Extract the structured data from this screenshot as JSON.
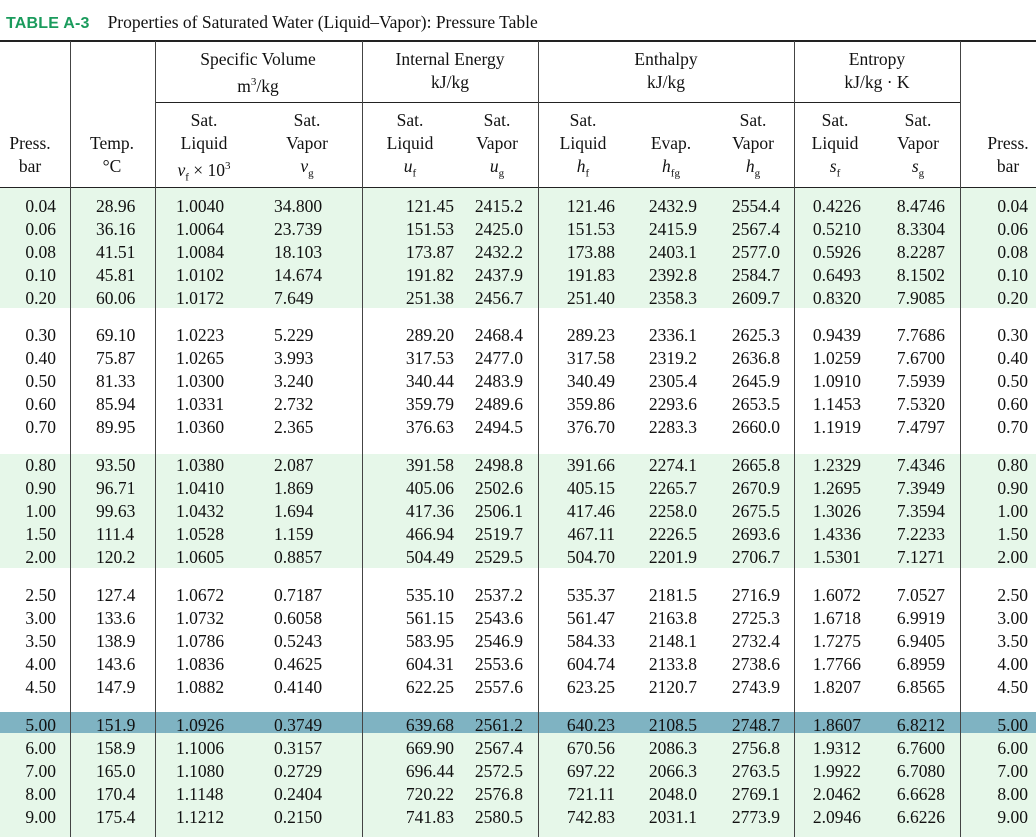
{
  "title": {
    "label": "TABLE A-3",
    "text": "Properties of Saturated Water (Liquid–Vapor): Pressure Table"
  },
  "groups": [
    {
      "name": "Specific Volume",
      "unit": "m³/kg"
    },
    {
      "name": "Internal Energy",
      "unit": "kJ/kg"
    },
    {
      "name": "Enthalpy",
      "unit": "kJ/kg"
    },
    {
      "name": "Entropy",
      "unit": "kJ/kg · K"
    }
  ],
  "columns": [
    {
      "l1": "",
      "l2": "Press.",
      "l3": "bar"
    },
    {
      "l1": "",
      "l2": "Temp.",
      "l3": "°C"
    },
    {
      "l1": "Sat.",
      "l2": "Liquid",
      "sym": "v",
      "sub": "f",
      "suffix": " × 10³"
    },
    {
      "l1": "Sat.",
      "l2": "Vapor",
      "sym": "v",
      "sub": "g",
      "suffix": ""
    },
    {
      "l1": "Sat.",
      "l2": "Liquid",
      "sym": "u",
      "sub": "f",
      "suffix": ""
    },
    {
      "l1": "Sat.",
      "l2": "Vapor",
      "sym": "u",
      "sub": "g",
      "suffix": ""
    },
    {
      "l1": "Sat.",
      "l2": "Liquid",
      "sym": "h",
      "sub": "f",
      "suffix": ""
    },
    {
      "l1": "",
      "l2": "Evap.",
      "sym": "h",
      "sub": "fg",
      "suffix": ""
    },
    {
      "l1": "Sat.",
      "l2": "Vapor",
      "sym": "h",
      "sub": "g",
      "suffix": ""
    },
    {
      "l1": "Sat.",
      "l2": "Liquid",
      "sym": "s",
      "sub": "f",
      "suffix": ""
    },
    {
      "l1": "Sat.",
      "l2": "Vapor",
      "sym": "s",
      "sub": "g",
      "suffix": ""
    },
    {
      "l1": "",
      "l2": "Press.",
      "l3": "bar"
    }
  ],
  "rows": [
    [
      "0.04",
      "28.96",
      "1.0040",
      "34.800",
      "121.45",
      "2415.2",
      "121.46",
      "2432.9",
      "2554.4",
      "0.4226",
      "8.4746",
      "0.04"
    ],
    [
      "0.06",
      "36.16",
      "1.0064",
      "23.739",
      "151.53",
      "2425.0",
      "151.53",
      "2415.9",
      "2567.4",
      "0.5210",
      "8.3304",
      "0.06"
    ],
    [
      "0.08",
      "41.51",
      "1.0084",
      "18.103",
      "173.87",
      "2432.2",
      "173.88",
      "2403.1",
      "2577.0",
      "0.5926",
      "8.2287",
      "0.08"
    ],
    [
      "0.10",
      "45.81",
      "1.0102",
      "14.674",
      "191.82",
      "2437.9",
      "191.83",
      "2392.8",
      "2584.7",
      "0.6493",
      "8.1502",
      "0.10"
    ],
    [
      "0.20",
      "60.06",
      "1.0172",
      "7.649",
      "251.38",
      "2456.7",
      "251.40",
      "2358.3",
      "2609.7",
      "0.8320",
      "7.9085",
      "0.20"
    ],
    [
      "0.30",
      "69.10",
      "1.0223",
      "5.229",
      "289.20",
      "2468.4",
      "289.23",
      "2336.1",
      "2625.3",
      "0.9439",
      "7.7686",
      "0.30"
    ],
    [
      "0.40",
      "75.87",
      "1.0265",
      "3.993",
      "317.53",
      "2477.0",
      "317.58",
      "2319.2",
      "2636.8",
      "1.0259",
      "7.6700",
      "0.40"
    ],
    [
      "0.50",
      "81.33",
      "1.0300",
      "3.240",
      "340.44",
      "2483.9",
      "340.49",
      "2305.4",
      "2645.9",
      "1.0910",
      "7.5939",
      "0.50"
    ],
    [
      "0.60",
      "85.94",
      "1.0331",
      "2.732",
      "359.79",
      "2489.6",
      "359.86",
      "2293.6",
      "2653.5",
      "1.1453",
      "7.5320",
      "0.60"
    ],
    [
      "0.70",
      "89.95",
      "1.0360",
      "2.365",
      "376.63",
      "2494.5",
      "376.70",
      "2283.3",
      "2660.0",
      "1.1919",
      "7.4797",
      "0.70"
    ],
    [
      "0.80",
      "93.50",
      "1.0380",
      "2.087",
      "391.58",
      "2498.8",
      "391.66",
      "2274.1",
      "2665.8",
      "1.2329",
      "7.4346",
      "0.80"
    ],
    [
      "0.90",
      "96.71",
      "1.0410",
      "1.869",
      "405.06",
      "2502.6",
      "405.15",
      "2265.7",
      "2670.9",
      "1.2695",
      "7.3949",
      "0.90"
    ],
    [
      "1.00",
      "99.63",
      "1.0432",
      "1.694",
      "417.36",
      "2506.1",
      "417.46",
      "2258.0",
      "2675.5",
      "1.3026",
      "7.3594",
      "1.00"
    ],
    [
      "1.50",
      "111.4",
      "1.0528",
      "1.159",
      "466.94",
      "2519.7",
      "467.11",
      "2226.5",
      "2693.6",
      "1.4336",
      "7.2233",
      "1.50"
    ],
    [
      "2.00",
      "120.2",
      "1.0605",
      "0.8857",
      "504.49",
      "2529.5",
      "504.70",
      "2201.9",
      "2706.7",
      "1.5301",
      "7.1271",
      "2.00"
    ],
    [
      "2.50",
      "127.4",
      "1.0672",
      "0.7187",
      "535.10",
      "2537.2",
      "535.37",
      "2181.5",
      "2716.9",
      "1.6072",
      "7.0527",
      "2.50"
    ],
    [
      "3.00",
      "133.6",
      "1.0732",
      "0.6058",
      "561.15",
      "2543.6",
      "561.47",
      "2163.8",
      "2725.3",
      "1.6718",
      "6.9919",
      "3.00"
    ],
    [
      "3.50",
      "138.9",
      "1.0786",
      "0.5243",
      "583.95",
      "2546.9",
      "584.33",
      "2148.1",
      "2732.4",
      "1.7275",
      "6.9405",
      "3.50"
    ],
    [
      "4.00",
      "143.6",
      "1.0836",
      "0.4625",
      "604.31",
      "2553.6",
      "604.74",
      "2133.8",
      "2738.6",
      "1.7766",
      "6.8959",
      "4.00"
    ],
    [
      "4.50",
      "147.9",
      "1.0882",
      "0.4140",
      "622.25",
      "2557.6",
      "623.25",
      "2120.7",
      "2743.9",
      "1.8207",
      "6.8565",
      "4.50"
    ],
    [
      "5.00",
      "151.9",
      "1.0926",
      "0.3749",
      "639.68",
      "2561.2",
      "640.23",
      "2108.5",
      "2748.7",
      "1.8607",
      "6.8212",
      "5.00"
    ],
    [
      "6.00",
      "158.9",
      "1.1006",
      "0.3157",
      "669.90",
      "2567.4",
      "670.56",
      "2086.3",
      "2756.8",
      "1.9312",
      "6.7600",
      "6.00"
    ],
    [
      "7.00",
      "165.0",
      "1.1080",
      "0.2729",
      "696.44",
      "2572.5",
      "697.22",
      "2066.3",
      "2763.5",
      "1.9922",
      "6.7080",
      "7.00"
    ],
    [
      "8.00",
      "170.4",
      "1.1148",
      "0.2404",
      "720.22",
      "2576.8",
      "721.11",
      "2048.0",
      "2769.1",
      "2.0462",
      "6.6628",
      "8.00"
    ],
    [
      "9.00",
      "175.4",
      "1.1212",
      "0.2150",
      "741.83",
      "2580.5",
      "742.83",
      "2031.1",
      "2773.9",
      "2.0946",
      "6.6226",
      "9.00"
    ]
  ],
  "highlight_row": 20,
  "colors": {
    "label_green": "#1a9b5c",
    "band_green": "#e6f7e9",
    "highlight_blue": "#7fb3c2"
  }
}
